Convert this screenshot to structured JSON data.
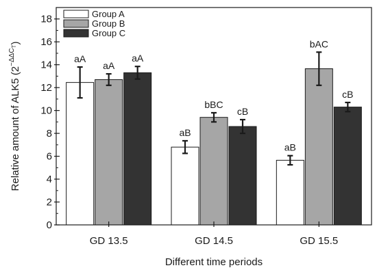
{
  "chart_data": {
    "type": "bar",
    "title": "",
    "xlabel": "Different time periods",
    "ylabel_main": "Relative amount of ALK5 (2",
    "ylabel_sup": "−ΔΔC",
    "ylabel_sub": "T",
    "ylabel_end": ")",
    "ylim": [
      0,
      19
    ],
    "yticks": [
      0,
      2,
      4,
      6,
      8,
      10,
      12,
      14,
      16,
      18
    ],
    "ytick_labels": [
      "0",
      "2",
      "4",
      "6",
      "8",
      "10",
      "12",
      "14",
      "16",
      "18"
    ],
    "grid": false,
    "legend_position": "top-left",
    "categories": [
      "GD 13.5",
      "GD 14.5",
      "GD 15.5"
    ],
    "series": [
      {
        "name": "Group A",
        "color": "#ffffff",
        "values": [
          12.45,
          6.8,
          5.65
        ],
        "errors": [
          1.35,
          0.55,
          0.4
        ],
        "labels": [
          "aA",
          "aB",
          "aB"
        ]
      },
      {
        "name": "Group B",
        "color": "#a6a6a6",
        "values": [
          12.7,
          9.4,
          13.65
        ],
        "errors": [
          0.5,
          0.4,
          1.45
        ],
        "labels": [
          "aA",
          "bBC",
          "bAC"
        ]
      },
      {
        "name": "Group C",
        "color": "#333333",
        "values": [
          13.3,
          8.6,
          10.3
        ],
        "errors": [
          0.55,
          0.6,
          0.4
        ],
        "labels": [
          "aA",
          "cB",
          "cB"
        ]
      }
    ]
  }
}
